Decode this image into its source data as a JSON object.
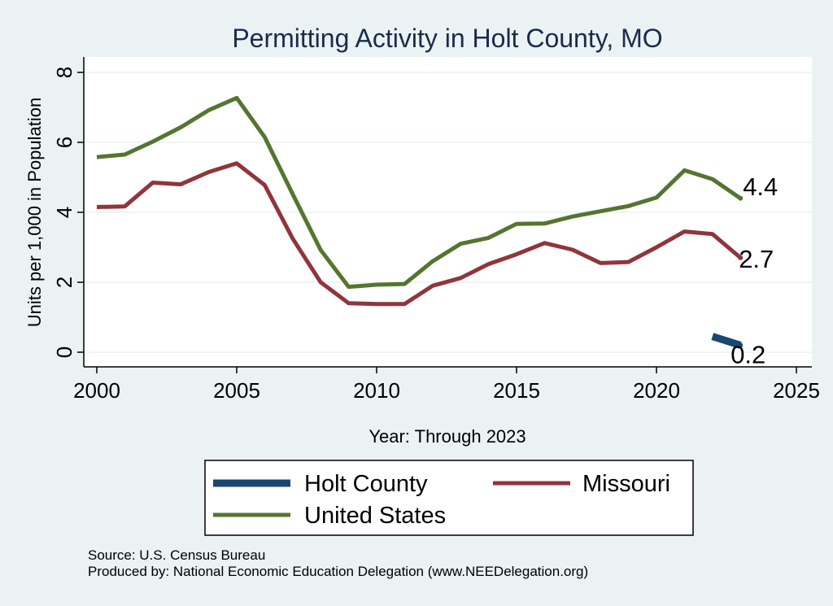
{
  "chart_data": {
    "type": "line",
    "title": "Permitting Activity in Holt County, MO",
    "xlabel": "Year: Through 2023",
    "ylabel": "Units per 1,000 in Population",
    "xlim": [
      2000,
      2025
    ],
    "ylim": [
      0,
      8
    ],
    "xticks": [
      2000,
      2005,
      2010,
      2015,
      2020,
      2025
    ],
    "yticks": [
      0,
      2,
      4,
      6,
      8
    ],
    "grid": true,
    "legend_placement": "bottom",
    "series": [
      {
        "name": "Holt County",
        "color": "#1a476f",
        "x": [
          2022,
          2023
        ],
        "values": [
          0.45,
          0.2
        ],
        "end_label": "0.2"
      },
      {
        "name": "Missouri",
        "color": "#90353b",
        "x": [
          2000,
          2001,
          2002,
          2003,
          2004,
          2005,
          2006,
          2007,
          2008,
          2009,
          2010,
          2011,
          2012,
          2013,
          2014,
          2015,
          2016,
          2017,
          2018,
          2019,
          2020,
          2021,
          2022,
          2023
        ],
        "values": [
          4.15,
          4.17,
          4.85,
          4.8,
          5.15,
          5.4,
          4.78,
          3.25,
          2.0,
          1.4,
          1.38,
          1.38,
          1.9,
          2.12,
          2.52,
          2.8,
          3.12,
          2.93,
          2.55,
          2.58,
          3.0,
          3.45,
          3.38,
          2.7
        ],
        "end_label": "2.7"
      },
      {
        "name": "United States",
        "color": "#55752f",
        "x": [
          2000,
          2001,
          2002,
          2003,
          2004,
          2005,
          2006,
          2007,
          2008,
          2009,
          2010,
          2011,
          2012,
          2013,
          2014,
          2015,
          2016,
          2017,
          2018,
          2019,
          2020,
          2021,
          2022,
          2023
        ],
        "values": [
          5.58,
          5.65,
          6.02,
          6.43,
          6.92,
          7.27,
          6.15,
          4.52,
          2.92,
          1.87,
          1.93,
          1.95,
          2.6,
          3.1,
          3.27,
          3.67,
          3.68,
          3.88,
          4.03,
          4.18,
          4.42,
          5.2,
          4.95,
          4.4
        ],
        "end_label": "4.4"
      }
    ],
    "notes": [
      "Source: U.S. Census Bureau",
      "Produced by: National Economic Education Delegation (www.NEEDelegation.org)"
    ]
  }
}
